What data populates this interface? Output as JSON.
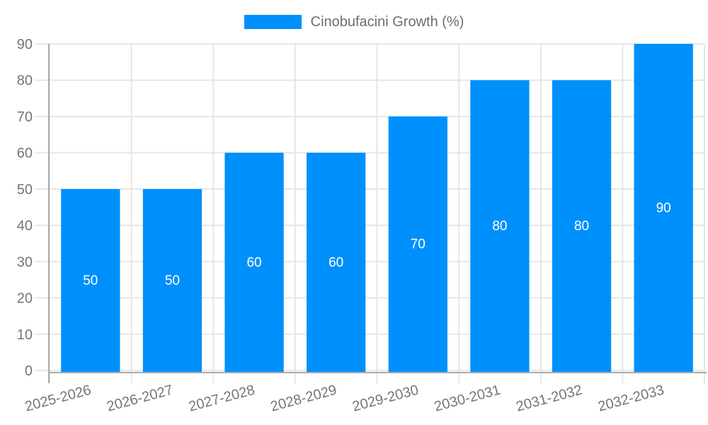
{
  "legend": {
    "label": "Cinobufacini Growth (%)"
  },
  "chart_data": {
    "type": "bar",
    "title": "Cinobufacini Growth (%)",
    "categories": [
      "2025-2026",
      "2026-2027",
      "2027-2028",
      "2028-2029",
      "2029-2030",
      "2030-2031",
      "2031-2032",
      "2032-2033"
    ],
    "values": [
      50,
      50,
      60,
      60,
      70,
      80,
      80,
      90
    ],
    "data_labels": [
      "50",
      "50",
      "60",
      "60",
      "70",
      "80",
      "80",
      "90"
    ],
    "yticks": [
      0,
      10,
      20,
      30,
      40,
      50,
      60,
      70,
      80,
      90
    ],
    "ylim": [
      0,
      90
    ],
    "xlabel": "",
    "ylabel": "",
    "grid": true,
    "legend_position": "top",
    "xlabel_rotation_deg": -15,
    "colors": {
      "bar": "#0090FB",
      "grid": "#E6E6E6",
      "axis": "#ABABAB",
      "tick_label": "#757575",
      "value_label": "#FFFFFF",
      "legend_text": "#6E6E6E"
    }
  }
}
